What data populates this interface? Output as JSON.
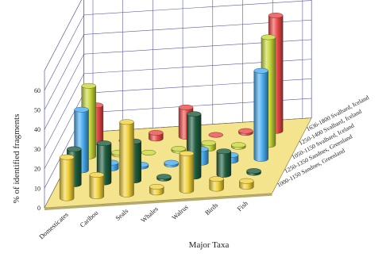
{
  "chart_data": {
    "type": "bar",
    "subtype": "3d-cylinder",
    "title": "",
    "xlabel": "Major Taxa",
    "ylabel": "% of identified fragments",
    "ylim": [
      0,
      70
    ],
    "yticks": [
      0,
      10,
      20,
      30,
      40,
      50,
      60
    ],
    "grid": true,
    "categories": [
      "Domesticates",
      "Caribou",
      "Seals",
      "Whales",
      "Walrus",
      "Birds",
      "Fish"
    ],
    "series": [
      {
        "name": "1000-1150 Sandnes, Greenland",
        "color": "#f2d23a",
        "values": [
          21,
          11,
          37,
          3,
          19,
          5,
          3
        ]
      },
      {
        "name": "1250-1350 Sandnes, Greenland",
        "color": "#1e5e3e",
        "values": [
          18,
          20,
          20,
          1,
          32,
          12,
          1
        ]
      },
      {
        "name": "1050-1150 Svalbard, Iceland",
        "color": "#4aaef0",
        "values": [
          31,
          3,
          1,
          1,
          7,
          3,
          45
        ]
      },
      {
        "name": "1250-1400 Svalbard, Iceland",
        "color": "#c8d83a",
        "values": [
          36,
          1,
          0,
          1,
          3,
          1,
          55
        ]
      },
      {
        "name": "1636-1800 Svalbard, Iceland",
        "color": "#ee4a4a",
        "values": [
          19,
          0,
          3,
          15,
          0,
          1,
          59
        ]
      }
    ],
    "legend_position": "right"
  },
  "colors": {
    "floor": "#f4e48e",
    "wall": "#ffffff",
    "grid": "#5a5aa8"
  }
}
